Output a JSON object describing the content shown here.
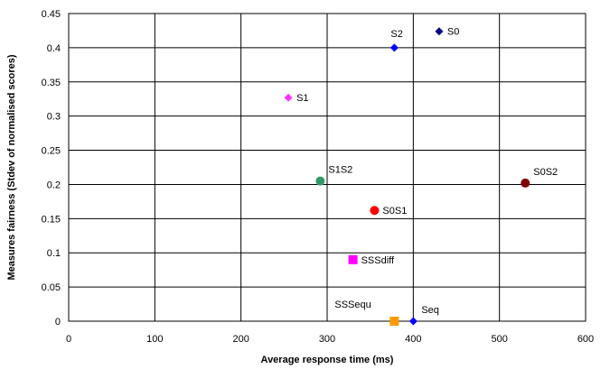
{
  "chart_data": {
    "type": "scatter",
    "title": "",
    "xlabel": "Average response time (ms)",
    "ylabel": "Measures fairness (Stdev of normalised scores)",
    "xlim": [
      0,
      600
    ],
    "ylim": [
      0,
      0.45
    ],
    "x_ticks": [
      0,
      100,
      200,
      300,
      400,
      500,
      600
    ],
    "y_ticks": [
      0,
      0.05,
      0.1,
      0.15,
      0.2,
      0.25,
      0.3,
      0.35,
      0.4,
      0.45
    ],
    "grid": true,
    "legend": "none",
    "points": [
      {
        "label": "S0",
        "x": 430,
        "y": 0.424,
        "marker": "diamond",
        "color": "#000080",
        "label_pos": "right"
      },
      {
        "label": "S2",
        "x": 378,
        "y": 0.4,
        "marker": "diamond",
        "color": "#0000ff",
        "label_pos": "above-left"
      },
      {
        "label": "S1",
        "x": 255,
        "y": 0.327,
        "marker": "diamond",
        "color": "#ff33ff",
        "label_pos": "right"
      },
      {
        "label": "S1S2",
        "x": 292,
        "y": 0.205,
        "marker": "circle",
        "color": "#339966",
        "label_pos": "above-right"
      },
      {
        "label": "S0S2",
        "x": 530,
        "y": 0.202,
        "marker": "circle",
        "color": "#800000",
        "label_pos": "above-right"
      },
      {
        "label": "S0S1",
        "x": 355,
        "y": 0.162,
        "marker": "circle",
        "color": "#ff0000",
        "label_pos": "right"
      },
      {
        "label": "SSSdiff",
        "x": 330,
        "y": 0.09,
        "marker": "square",
        "color": "#ff00ff",
        "label_pos": "right"
      },
      {
        "label": "SSSequ",
        "x": 378,
        "y": 0.0,
        "marker": "square",
        "color": "#ff9900",
        "label_pos": "above-left"
      },
      {
        "label": "Seq",
        "x": 400,
        "y": 0.0,
        "marker": "diamond",
        "color": "#0000ff",
        "label_pos": "above-right"
      }
    ]
  }
}
